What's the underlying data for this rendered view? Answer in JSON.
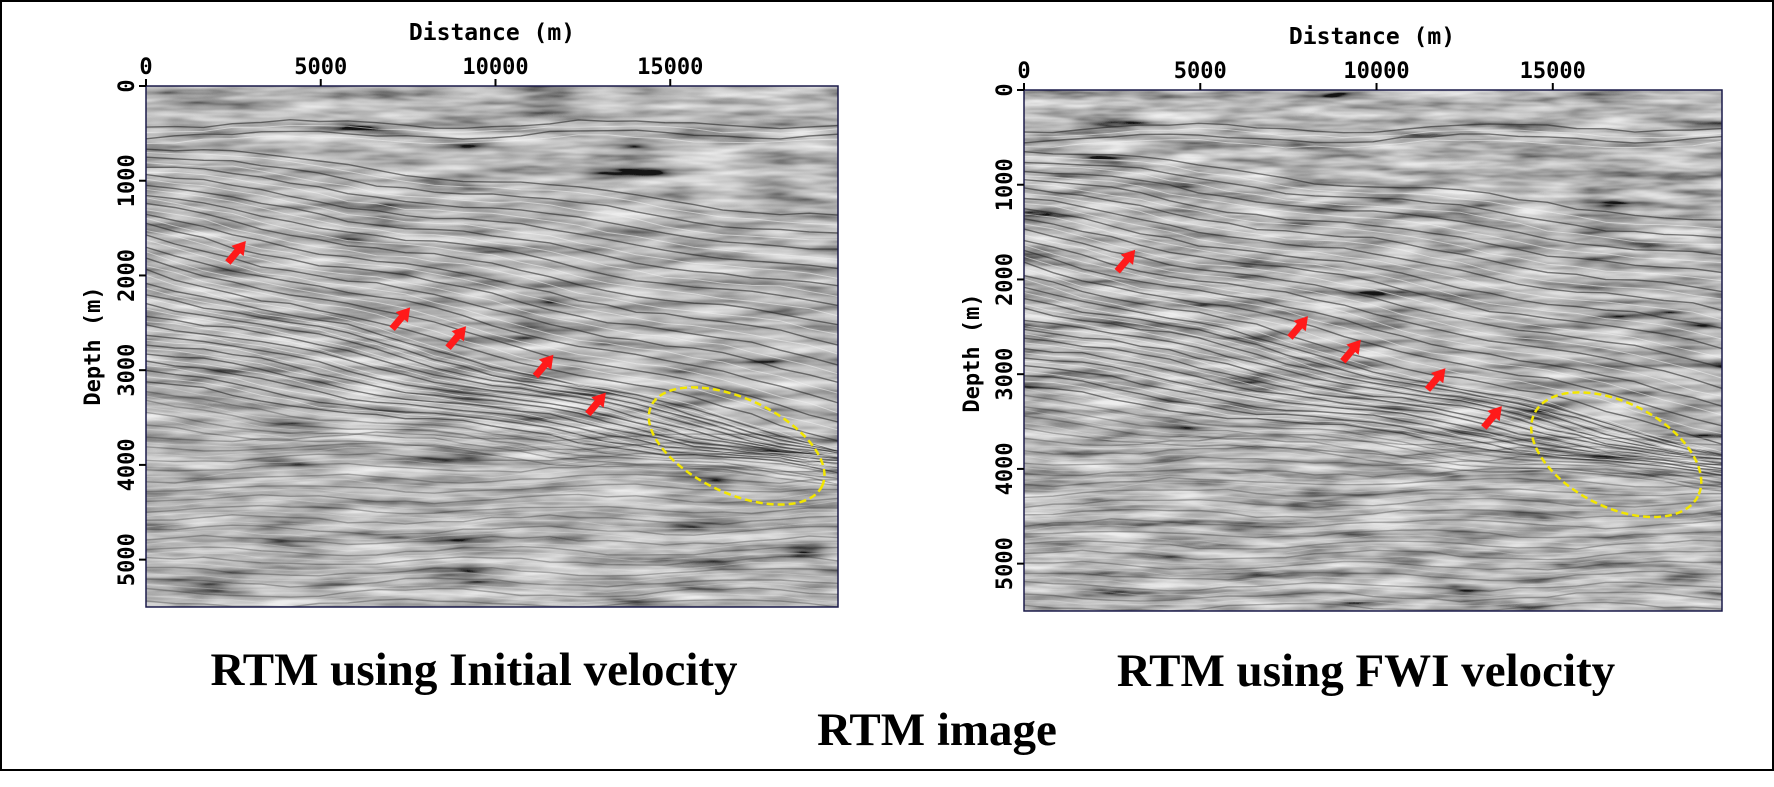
{
  "figure_title": "RTM image",
  "colors": {
    "background": "#ffffff",
    "seismic_mid": "#8a8a8a",
    "arrow": "#ff1a1a",
    "ellipse": "#f2e600",
    "frame": "#000000"
  },
  "chart_data": [
    {
      "type": "heatmap",
      "panel": "left",
      "title": "RTM using Initial velocity",
      "xlabel": "Distance (m)",
      "ylabel": "Depth (m)",
      "xlim": [
        0,
        19800
      ],
      "ylim": [
        0,
        5500
      ],
      "x_ticks": [
        0,
        5000,
        10000,
        15000
      ],
      "y_ticks": [
        0,
        1000,
        2000,
        3000,
        4000,
        5000
      ],
      "x_axis_position": "top",
      "y_axis_inverted": true,
      "colormap": "gray",
      "grid": false,
      "legend": "none",
      "arrows": [
        {
          "x": 2600,
          "y": 1750
        },
        {
          "x": 7300,
          "y": 2450
        },
        {
          "x": 8900,
          "y": 2650
        },
        {
          "x": 11400,
          "y": 2950
        },
        {
          "x": 12900,
          "y": 3350
        }
      ],
      "ellipse": {
        "cx": 16900,
        "cy": 3800,
        "rx": 2700,
        "ry": 500,
        "angle_deg": 25
      }
    },
    {
      "type": "heatmap",
      "panel": "right",
      "title": "RTM using FWI velocity",
      "xlabel": "Distance (m)",
      "ylabel": "Depth (m)",
      "xlim": [
        0,
        19800
      ],
      "ylim": [
        0,
        5500
      ],
      "x_ticks": [
        0,
        5000,
        10000,
        15000
      ],
      "y_ticks": [
        0,
        1000,
        2000,
        3000,
        4000,
        5000
      ],
      "x_axis_position": "top",
      "y_axis_inverted": true,
      "colormap": "gray",
      "grid": false,
      "legend": "none",
      "arrows": [
        {
          "x": 2900,
          "y": 1800
        },
        {
          "x": 7800,
          "y": 2500
        },
        {
          "x": 9300,
          "y": 2750
        },
        {
          "x": 11700,
          "y": 3050
        },
        {
          "x": 13300,
          "y": 3450
        }
      ],
      "ellipse": {
        "cx": 16800,
        "cy": 3850,
        "rx": 2600,
        "ry": 550,
        "angle_deg": 27
      }
    }
  ]
}
